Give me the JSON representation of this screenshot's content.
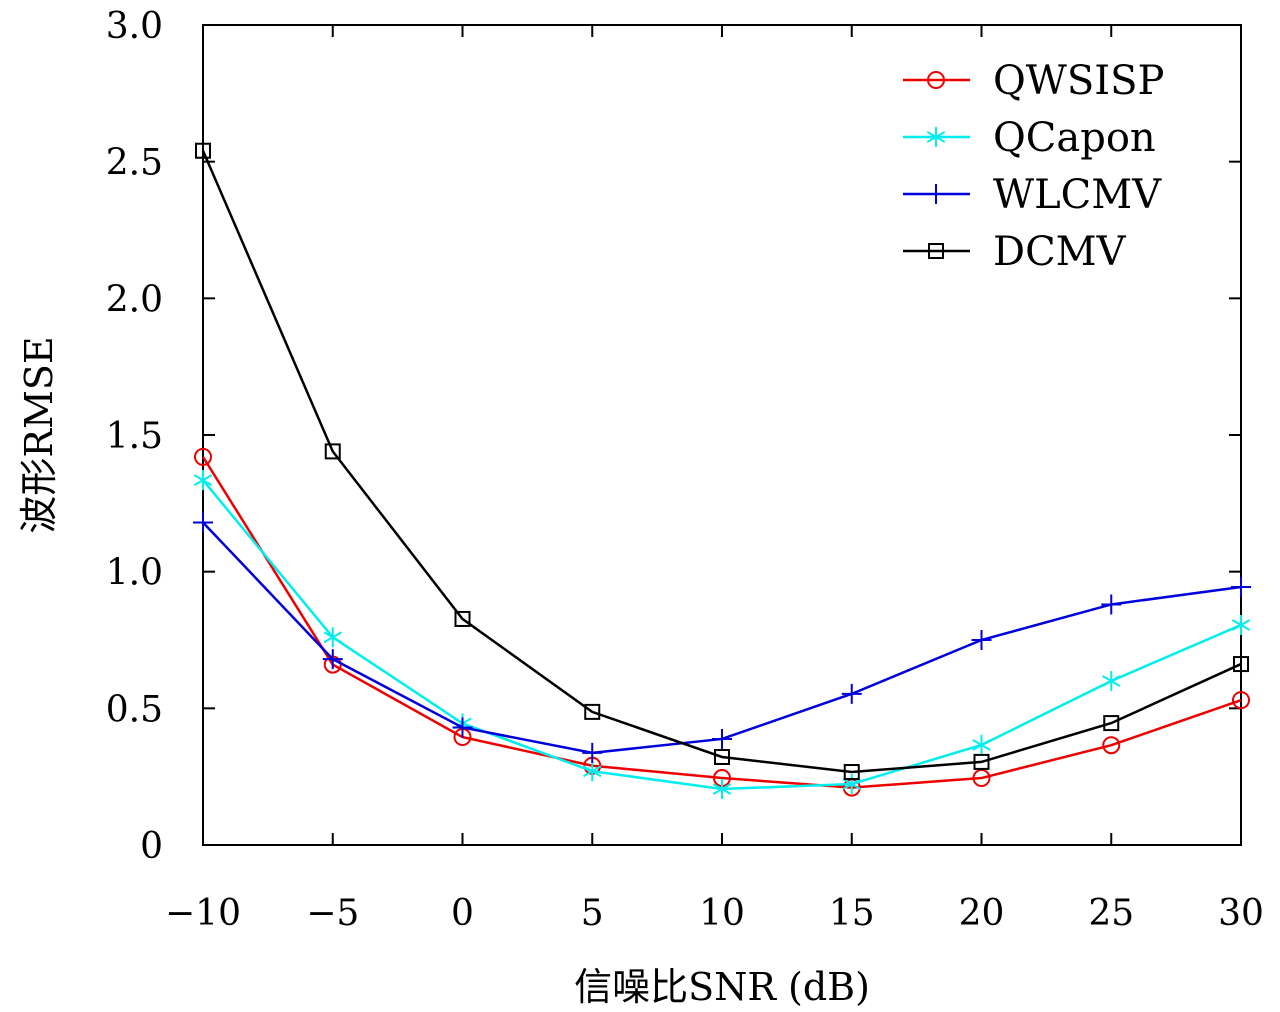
{
  "chart_data": {
    "type": "line",
    "title": "",
    "xlabel": "信噪比SNR (dB)",
    "ylabel": "波形RMSE",
    "xlim": [
      -10,
      30
    ],
    "ylim": [
      0,
      3.0
    ],
    "x": [
      -10,
      -5,
      0,
      5,
      10,
      15,
      20,
      25,
      30
    ],
    "xticks": [
      -10,
      -5,
      0,
      5,
      10,
      15,
      20,
      25,
      30
    ],
    "xtick_labels": [
      "−10",
      "−5",
      "0",
      "5",
      "10",
      "15",
      "20",
      "25",
      "30"
    ],
    "yticks": [
      0,
      0.5,
      1.0,
      1.5,
      2.0,
      2.5,
      3.0
    ],
    "ytick_labels": [
      "0",
      "0.5",
      "1.0",
      "1.5",
      "2.0",
      "2.5",
      "3.0"
    ],
    "grid": false,
    "legend_position": "top-right",
    "series": [
      {
        "name": "QWSISP",
        "color": "#ee0000",
        "marker": "circle",
        "values": [
          1.42,
          0.66,
          0.395,
          0.29,
          0.245,
          0.21,
          0.245,
          0.365,
          0.53
        ]
      },
      {
        "name": "QCapon",
        "color": "#00eeee",
        "marker": "asterisk",
        "values": [
          1.335,
          0.76,
          0.445,
          0.27,
          0.205,
          0.223,
          0.366,
          0.6,
          0.805
        ]
      },
      {
        "name": "WLCMV",
        "color": "#0000dd",
        "marker": "plus",
        "values": [
          1.18,
          0.68,
          0.43,
          0.337,
          0.388,
          0.553,
          0.75,
          0.88,
          0.944
        ]
      },
      {
        "name": "DCMV",
        "color": "#000000",
        "marker": "square",
        "values": [
          2.54,
          1.44,
          0.827,
          0.487,
          0.322,
          0.267,
          0.304,
          0.446,
          0.662
        ]
      }
    ]
  }
}
